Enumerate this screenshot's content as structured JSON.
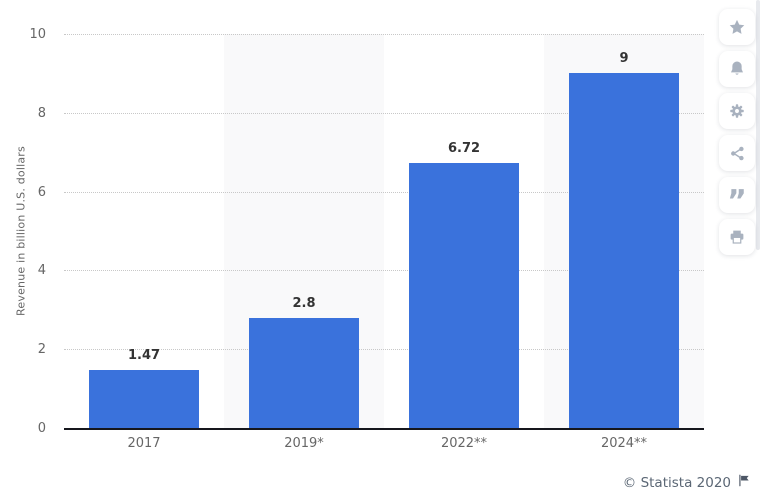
{
  "chart_data": {
    "type": "bar",
    "title": "",
    "categories": [
      "2017",
      "2019*",
      "2022**",
      "2024**"
    ],
    "values": [
      1.47,
      2.8,
      6.72,
      9
    ],
    "value_labels": [
      "1.47",
      "2.8",
      "6.72",
      "9"
    ],
    "xlabel": "",
    "ylabel": "Revenue in billion U.S. dollars",
    "ylim": [
      0,
      10
    ],
    "yticks": [
      0,
      2,
      4,
      6,
      8,
      10
    ],
    "grid": "horizontal-dotted",
    "legend": "none",
    "bar_color": "#3a72dc",
    "band_color": "#f9f9fa",
    "gridline_color": "#c8c8c8",
    "axis_line_color": "#16171d",
    "tick_label_color": "#666666",
    "value_label_color": "#333333"
  },
  "sidebar": {
    "buttons": [
      {
        "name": "favorite",
        "icon": "star-icon"
      },
      {
        "name": "notifications",
        "icon": "bell-icon"
      },
      {
        "name": "settings",
        "icon": "gear-icon"
      },
      {
        "name": "share",
        "icon": "share-icon"
      },
      {
        "name": "cite",
        "icon": "quote-icon"
      },
      {
        "name": "print",
        "icon": "printer-icon"
      }
    ],
    "icon_color": "#a9b2bf"
  },
  "footer": {
    "copyright": "© Statista 2020",
    "flag_icon": "flag-icon",
    "text_color": "#5b6775"
  }
}
